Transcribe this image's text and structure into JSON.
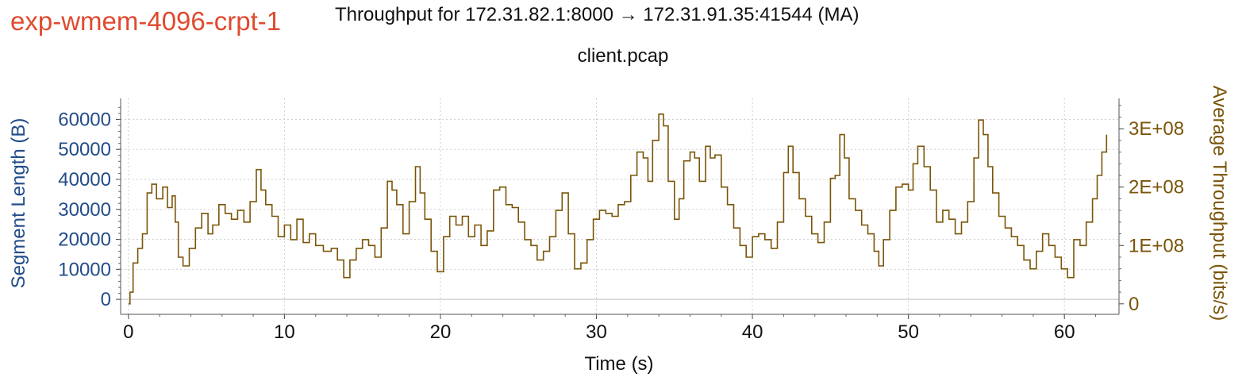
{
  "header": {
    "tag": "exp-wmem-4096-crpt-1",
    "title": "Throughput for 172.31.82.1:8000 → 172.31.91.35:41544 (MA)",
    "subtitle": "client.pcap"
  },
  "chart_data": {
    "type": "line",
    "title": "Throughput for 172.31.82.1:8000 → 172.31.91.35:41544 (MA)",
    "subtitle": "client.pcap",
    "xlabel": "Time (s)",
    "ylabel_left": "Segment Length (B)",
    "ylabel_right": "Average Throughput (bits/s)",
    "xlim": [
      -0.5,
      63.5
    ],
    "ylim_left": [
      -5000,
      67000
    ],
    "ylim_right": [
      -18000000,
      352000000
    ],
    "x_ticks": [
      0,
      10,
      20,
      30,
      40,
      50,
      60
    ],
    "y_left_ticks": [
      0,
      10000,
      20000,
      30000,
      40000,
      50000,
      60000
    ],
    "y_right_ticks": [
      {
        "value": 0,
        "label": "0"
      },
      {
        "value": 100000000,
        "label": "1E+08"
      },
      {
        "value": 200000000,
        "label": "2E+08"
      },
      {
        "value": 300000000,
        "label": "3E+08"
      }
    ],
    "grid": true,
    "colors": {
      "left_axis": "#224c8a",
      "right_axis": "#7a5508",
      "series": "#7a5508",
      "tag": "#e04a2f",
      "grid": "#cfcfcf"
    },
    "series": [
      {
        "axis": "right",
        "step": true,
        "points": [
          [
            0.0,
            0
          ],
          [
            0.1,
            20000000
          ],
          [
            0.3,
            70000000
          ],
          [
            0.6,
            95000000
          ],
          [
            0.9,
            120000000
          ],
          [
            1.2,
            190000000
          ],
          [
            1.5,
            205000000
          ],
          [
            1.8,
            180000000
          ],
          [
            2.2,
            200000000
          ],
          [
            2.5,
            165000000
          ],
          [
            2.8,
            185000000
          ],
          [
            3.0,
            140000000
          ],
          [
            3.2,
            80000000
          ],
          [
            3.5,
            65000000
          ],
          [
            3.9,
            95000000
          ],
          [
            4.3,
            130000000
          ],
          [
            4.7,
            155000000
          ],
          [
            5.1,
            120000000
          ],
          [
            5.4,
            135000000
          ],
          [
            5.8,
            170000000
          ],
          [
            6.2,
            155000000
          ],
          [
            6.6,
            145000000
          ],
          [
            7.0,
            160000000
          ],
          [
            7.4,
            140000000
          ],
          [
            7.8,
            175000000
          ],
          [
            8.2,
            230000000
          ],
          [
            8.5,
            195000000
          ],
          [
            8.8,
            170000000
          ],
          [
            9.2,
            150000000
          ],
          [
            9.6,
            115000000
          ],
          [
            10.0,
            135000000
          ],
          [
            10.4,
            110000000
          ],
          [
            10.8,
            145000000
          ],
          [
            11.2,
            105000000
          ],
          [
            11.6,
            120000000
          ],
          [
            12.0,
            100000000
          ],
          [
            12.5,
            90000000
          ],
          [
            13.0,
            95000000
          ],
          [
            13.4,
            75000000
          ],
          [
            13.8,
            45000000
          ],
          [
            14.2,
            75000000
          ],
          [
            14.6,
            95000000
          ],
          [
            15.0,
            110000000
          ],
          [
            15.4,
            100000000
          ],
          [
            15.8,
            80000000
          ],
          [
            16.2,
            130000000
          ],
          [
            16.6,
            210000000
          ],
          [
            16.9,
            195000000
          ],
          [
            17.2,
            170000000
          ],
          [
            17.6,
            120000000
          ],
          [
            18.0,
            175000000
          ],
          [
            18.4,
            235000000
          ],
          [
            18.7,
            190000000
          ],
          [
            19.0,
            145000000
          ],
          [
            19.4,
            90000000
          ],
          [
            19.8,
            55000000
          ],
          [
            20.2,
            115000000
          ],
          [
            20.6,
            150000000
          ],
          [
            21.0,
            135000000
          ],
          [
            21.4,
            150000000
          ],
          [
            21.8,
            115000000
          ],
          [
            22.2,
            135000000
          ],
          [
            22.6,
            100000000
          ],
          [
            23.0,
            125000000
          ],
          [
            23.4,
            195000000
          ],
          [
            23.8,
            200000000
          ],
          [
            24.2,
            170000000
          ],
          [
            24.6,
            165000000
          ],
          [
            25.0,
            140000000
          ],
          [
            25.4,
            110000000
          ],
          [
            25.8,
            100000000
          ],
          [
            26.2,
            75000000
          ],
          [
            26.6,
            90000000
          ],
          [
            27.0,
            115000000
          ],
          [
            27.4,
            160000000
          ],
          [
            27.8,
            190000000
          ],
          [
            28.2,
            120000000
          ],
          [
            28.6,
            60000000
          ],
          [
            29.0,
            70000000
          ],
          [
            29.4,
            110000000
          ],
          [
            29.8,
            145000000
          ],
          [
            30.2,
            160000000
          ],
          [
            30.6,
            155000000
          ],
          [
            31.0,
            150000000
          ],
          [
            31.4,
            170000000
          ],
          [
            31.8,
            175000000
          ],
          [
            32.2,
            220000000
          ],
          [
            32.6,
            260000000
          ],
          [
            33.0,
            250000000
          ],
          [
            33.3,
            210000000
          ],
          [
            33.6,
            280000000
          ],
          [
            34.0,
            325000000
          ],
          [
            34.3,
            305000000
          ],
          [
            34.6,
            210000000
          ],
          [
            35.0,
            145000000
          ],
          [
            35.3,
            180000000
          ],
          [
            35.6,
            245000000
          ],
          [
            36.0,
            260000000
          ],
          [
            36.3,
            250000000
          ],
          [
            36.6,
            210000000
          ],
          [
            37.0,
            270000000
          ],
          [
            37.3,
            250000000
          ],
          [
            37.6,
            255000000
          ],
          [
            38.0,
            200000000
          ],
          [
            38.4,
            170000000
          ],
          [
            38.8,
            130000000
          ],
          [
            39.2,
            100000000
          ],
          [
            39.6,
            80000000
          ],
          [
            40.0,
            115000000
          ],
          [
            40.4,
            120000000
          ],
          [
            40.8,
            110000000
          ],
          [
            41.2,
            95000000
          ],
          [
            41.6,
            140000000
          ],
          [
            42.0,
            225000000
          ],
          [
            42.3,
            270000000
          ],
          [
            42.6,
            225000000
          ],
          [
            43.0,
            180000000
          ],
          [
            43.4,
            150000000
          ],
          [
            43.8,
            120000000
          ],
          [
            44.2,
            105000000
          ],
          [
            44.6,
            140000000
          ],
          [
            45.0,
            215000000
          ],
          [
            45.3,
            220000000
          ],
          [
            45.6,
            290000000
          ],
          [
            45.9,
            250000000
          ],
          [
            46.2,
            180000000
          ],
          [
            46.6,
            160000000
          ],
          [
            47.0,
            135000000
          ],
          [
            47.4,
            120000000
          ],
          [
            47.8,
            90000000
          ],
          [
            48.1,
            65000000
          ],
          [
            48.4,
            110000000
          ],
          [
            48.8,
            160000000
          ],
          [
            49.2,
            200000000
          ],
          [
            49.6,
            205000000
          ],
          [
            50.0,
            195000000
          ],
          [
            50.3,
            240000000
          ],
          [
            50.6,
            270000000
          ],
          [
            51.0,
            235000000
          ],
          [
            51.4,
            195000000
          ],
          [
            51.8,
            140000000
          ],
          [
            52.2,
            160000000
          ],
          [
            52.6,
            145000000
          ],
          [
            53.0,
            120000000
          ],
          [
            53.4,
            140000000
          ],
          [
            53.8,
            175000000
          ],
          [
            54.2,
            250000000
          ],
          [
            54.5,
            315000000
          ],
          [
            54.8,
            290000000
          ],
          [
            55.1,
            235000000
          ],
          [
            55.4,
            190000000
          ],
          [
            55.8,
            150000000
          ],
          [
            56.2,
            130000000
          ],
          [
            56.6,
            115000000
          ],
          [
            57.0,
            100000000
          ],
          [
            57.4,
            75000000
          ],
          [
            57.8,
            60000000
          ],
          [
            58.2,
            90000000
          ],
          [
            58.6,
            120000000
          ],
          [
            59.0,
            100000000
          ],
          [
            59.4,
            80000000
          ],
          [
            59.8,
            60000000
          ],
          [
            60.2,
            45000000
          ],
          [
            60.6,
            110000000
          ],
          [
            61.0,
            100000000
          ],
          [
            61.4,
            140000000
          ],
          [
            61.8,
            180000000
          ],
          [
            62.1,
            220000000
          ],
          [
            62.4,
            260000000
          ],
          [
            62.7,
            290000000
          ]
        ]
      }
    ]
  }
}
